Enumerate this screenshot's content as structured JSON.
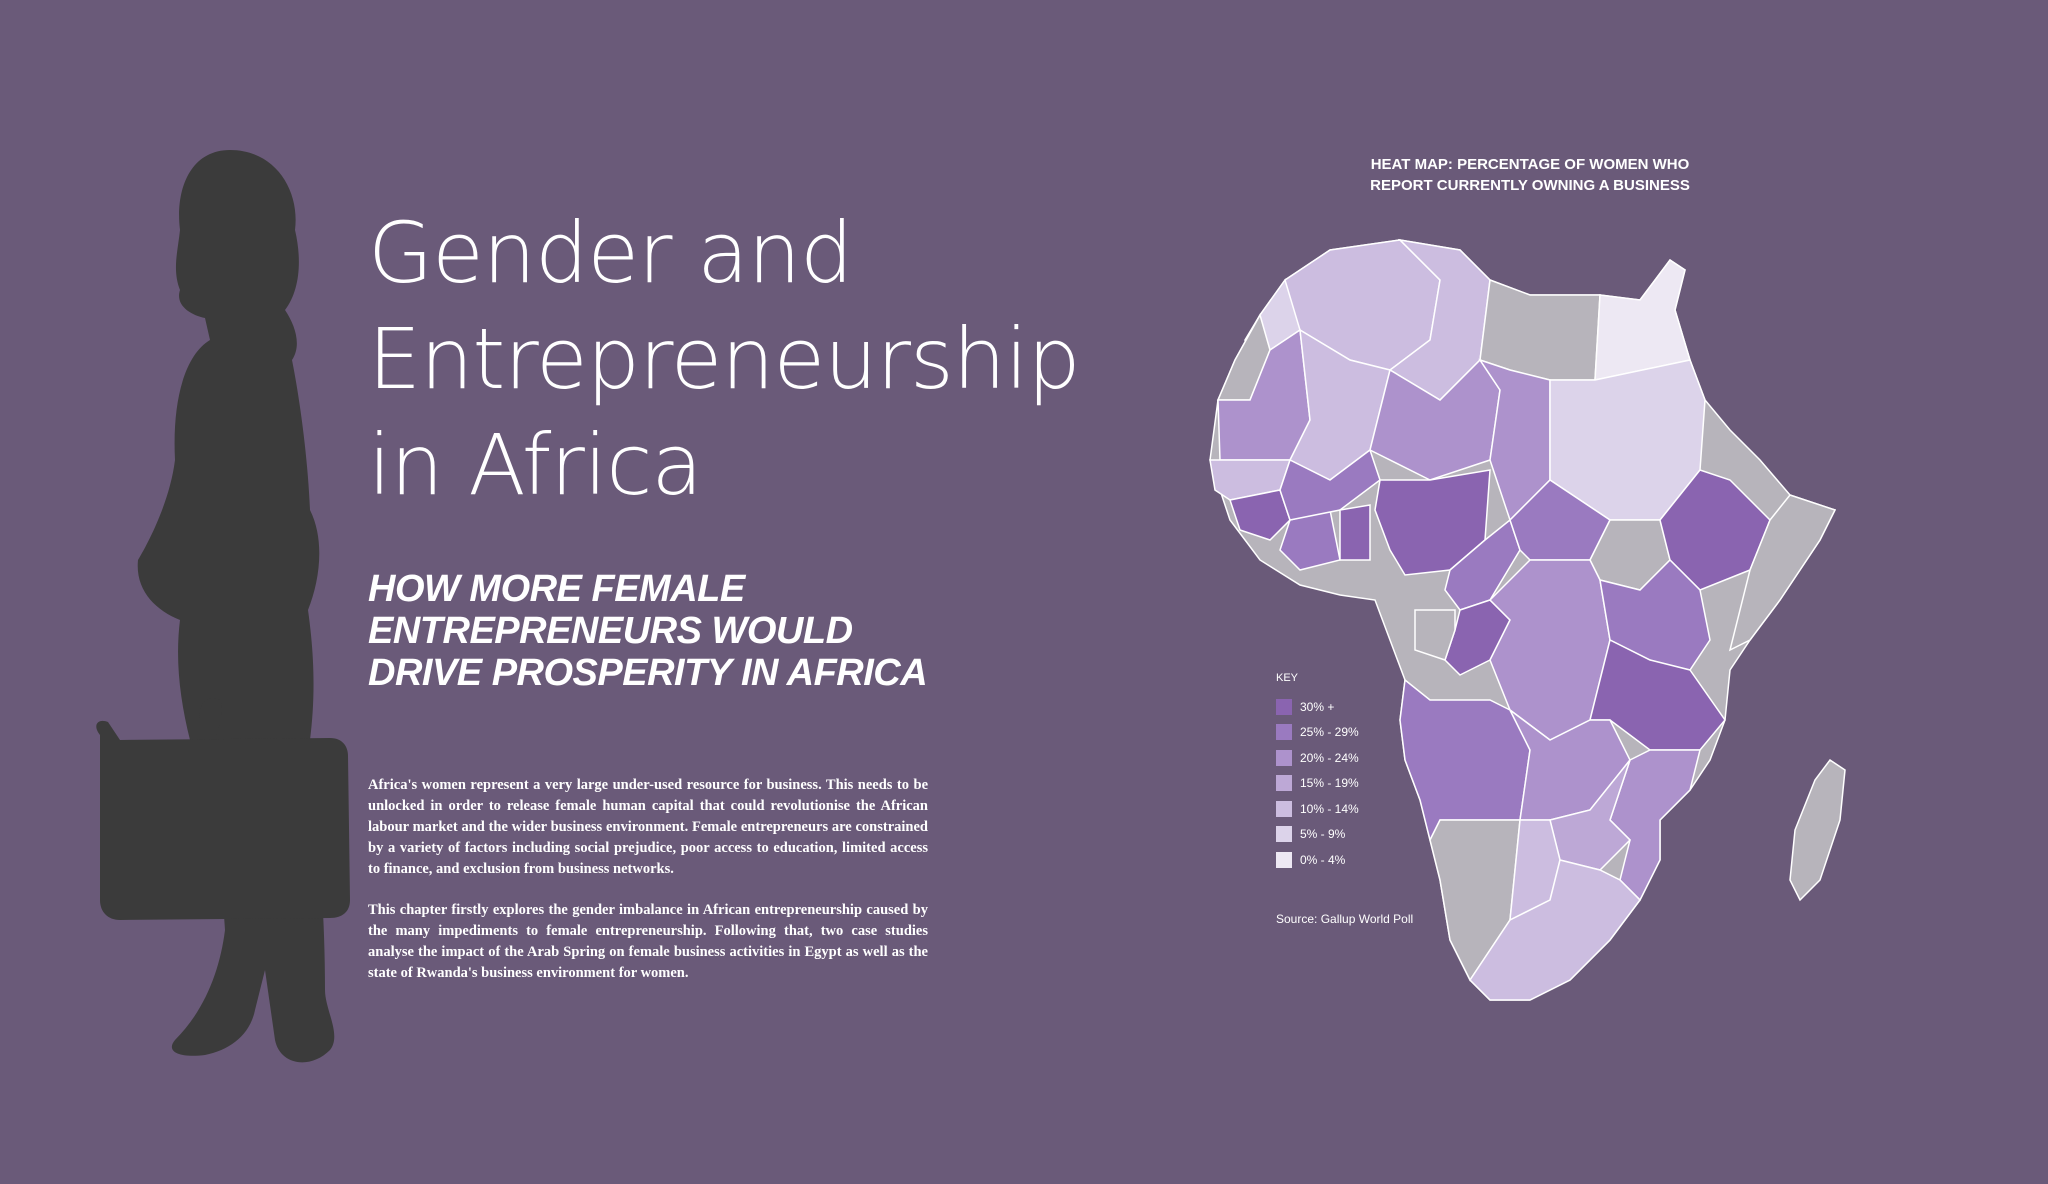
{
  "title_lines": [
    "Gender and",
    "Entrepreneurship",
    "in Africa"
  ],
  "subtitle_lines": [
    "HOW MORE FEMALE",
    "ENTREPRENEURS WOULD",
    "DRIVE PROSPERITY IN AFRICA"
  ],
  "paragraphs": [
    "Africa's women represent a very large under-used resource for business. This needs to be unlocked in order to release female human capital that could revolutionise the African labour market and the wider business environment. Female entrepreneurs are constrained by a variety of factors including social prejudice, poor access to education, limited access to finance, and exclusion from business networks.",
    "This chapter firstly explores the gender imbalance in African entrepreneurship caused by the many impediments to female entrepreneurship. Following that, two case studies analyse the impact of the Arab Spring on female business activities in Egypt as well as the state of Rwanda's business environment for women."
  ],
  "map": {
    "title_lines": [
      "HEAT MAP: PERCENTAGE OF WOMEN WHO",
      "REPORT CURRENTLY OWNING A BUSINESS"
    ],
    "legend_title": "KEY",
    "legend": [
      {
        "label": "30% +",
        "color": "#8a64b0"
      },
      {
        "label": "25% - 29%",
        "color": "#9a7ac0"
      },
      {
        "label": "20% - 24%",
        "color": "#ad92cc"
      },
      {
        "label": "15% - 19%",
        "color": "#bda8d6"
      },
      {
        "label": "10% - 14%",
        "color": "#ccbde0"
      },
      {
        "label": "5% - 9%",
        "color": "#dcd3ea"
      },
      {
        "label": "0% - 4%",
        "color": "#ede8f3"
      }
    ],
    "no_data_color": "#b7b4bb",
    "source": "Source: Gallup World Poll"
  }
}
